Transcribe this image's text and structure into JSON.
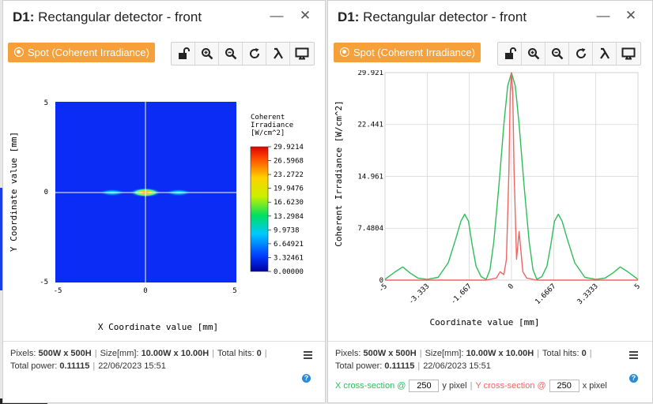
{
  "left": {
    "title_bold": "D1:",
    "title_rest": " Rectangular detector - front",
    "spot_label": "Spot (Coherent Irradiance)",
    "plot": {
      "ylabel": "Y Coordinate value [mm]",
      "xlabel": "X Coordinate value [mm]",
      "xticks": [
        "-5",
        "0",
        "5"
      ],
      "yticks": [
        "5",
        "0",
        "-5"
      ],
      "colorbar_title": [
        "Coherent",
        "Irradiance",
        "[W/cm^2]"
      ],
      "colorbar_ticks": [
        "29.9214",
        "26.5968",
        "23.2722",
        "19.9476",
        "16.6230",
        "13.2984",
        "9.9738",
        "6.64921",
        "3.32461",
        "0.00000"
      ]
    },
    "footer": {
      "pixels_label": "Pixels:",
      "pixels_value": "500W x 500H",
      "size_label": "Size[mm]:",
      "size_value": "10.00W x 10.00H",
      "hits_label": "Total hits:",
      "hits_value": "0",
      "power_label": "Total power:",
      "power_value": "0.11115",
      "timestamp": "22/06/2023 15:51"
    }
  },
  "right": {
    "title_bold": "D1:",
    "title_rest": " Rectangular detector - front",
    "spot_label": "Spot (Coherent Irradiance)",
    "footer": {
      "pixels_label": "Pixels:",
      "pixels_value": "500W x 500H",
      "size_label": "Size[mm]:",
      "size_value": "10.00W x 10.00H",
      "hits_label": "Total hits:",
      "hits_value": "0",
      "power_label": "Total power:",
      "power_value": "0.11115",
      "timestamp": "22/06/2023 15:51",
      "x_cross_label": "X cross-section @",
      "x_cross_value": "250",
      "x_unit": "y pixel",
      "y_cross_label": "Y cross-section @",
      "y_cross_value": "250",
      "y_unit": "x pixel"
    }
  },
  "colors": {
    "accent": "#f6a03a",
    "x_series": "#2ebd59",
    "y_series": "#f06464",
    "help": "#2a8ad6"
  },
  "chart_data": {
    "type": "line",
    "xlabel": "Coordinate value [mm]",
    "ylabel": "Coherent Irradiance [W/cm^2]",
    "xlim": [
      -5,
      5
    ],
    "ylim": [
      0,
      29.921
    ],
    "xticks": [
      "-5",
      "-3.333",
      "-1.667",
      "0",
      "1.6667",
      "3.3333",
      "5"
    ],
    "yticks": [
      "29.921",
      "22.441",
      "14.961",
      "7.4804",
      "0"
    ],
    "grid": true,
    "series": [
      {
        "color": "#2ebd59",
        "x": [
          -5,
          -4.6,
          -4.3,
          -4.0,
          -3.7,
          -3.333,
          -2.9,
          -2.5,
          -2.2,
          -2.0,
          -1.85,
          -1.7,
          -1.55,
          -1.4,
          -1.2,
          -1.0,
          -0.85,
          -0.7,
          -0.5,
          -0.3,
          -0.15,
          0,
          0.15,
          0.3,
          0.5,
          0.7,
          0.85,
          1.0,
          1.2,
          1.4,
          1.55,
          1.7,
          1.85,
          2.0,
          2.2,
          2.5,
          2.9,
          3.333,
          3.7,
          4.0,
          4.3,
          4.6,
          5
        ],
        "y": [
          0.1,
          1.2,
          1.9,
          1.0,
          0.3,
          0.1,
          0.4,
          2.5,
          6.0,
          8.5,
          9.5,
          8.5,
          5.0,
          2.0,
          0.5,
          0.1,
          1.5,
          5.5,
          13.5,
          22.5,
          28.0,
          29.9,
          28.0,
          22.5,
          13.5,
          5.5,
          1.5,
          0.1,
          0.5,
          2.0,
          5.0,
          8.5,
          9.5,
          8.5,
          6.0,
          2.5,
          0.4,
          0.1,
          0.3,
          1.0,
          1.9,
          1.2,
          0.1
        ]
      },
      {
        "color": "#f06464",
        "x": [
          -5,
          -1.0,
          -0.6,
          -0.45,
          -0.3,
          -0.2,
          -0.1,
          -0.05,
          0,
          0.05,
          0.1,
          0.2,
          0.3,
          0.45,
          0.6,
          1.0,
          5
        ],
        "y": [
          0,
          0,
          0.3,
          1.2,
          0.8,
          3.0,
          16.0,
          27.0,
          29.9,
          27.0,
          16.0,
          3.0,
          7.0,
          1.2,
          0.3,
          0,
          0
        ]
      }
    ]
  }
}
